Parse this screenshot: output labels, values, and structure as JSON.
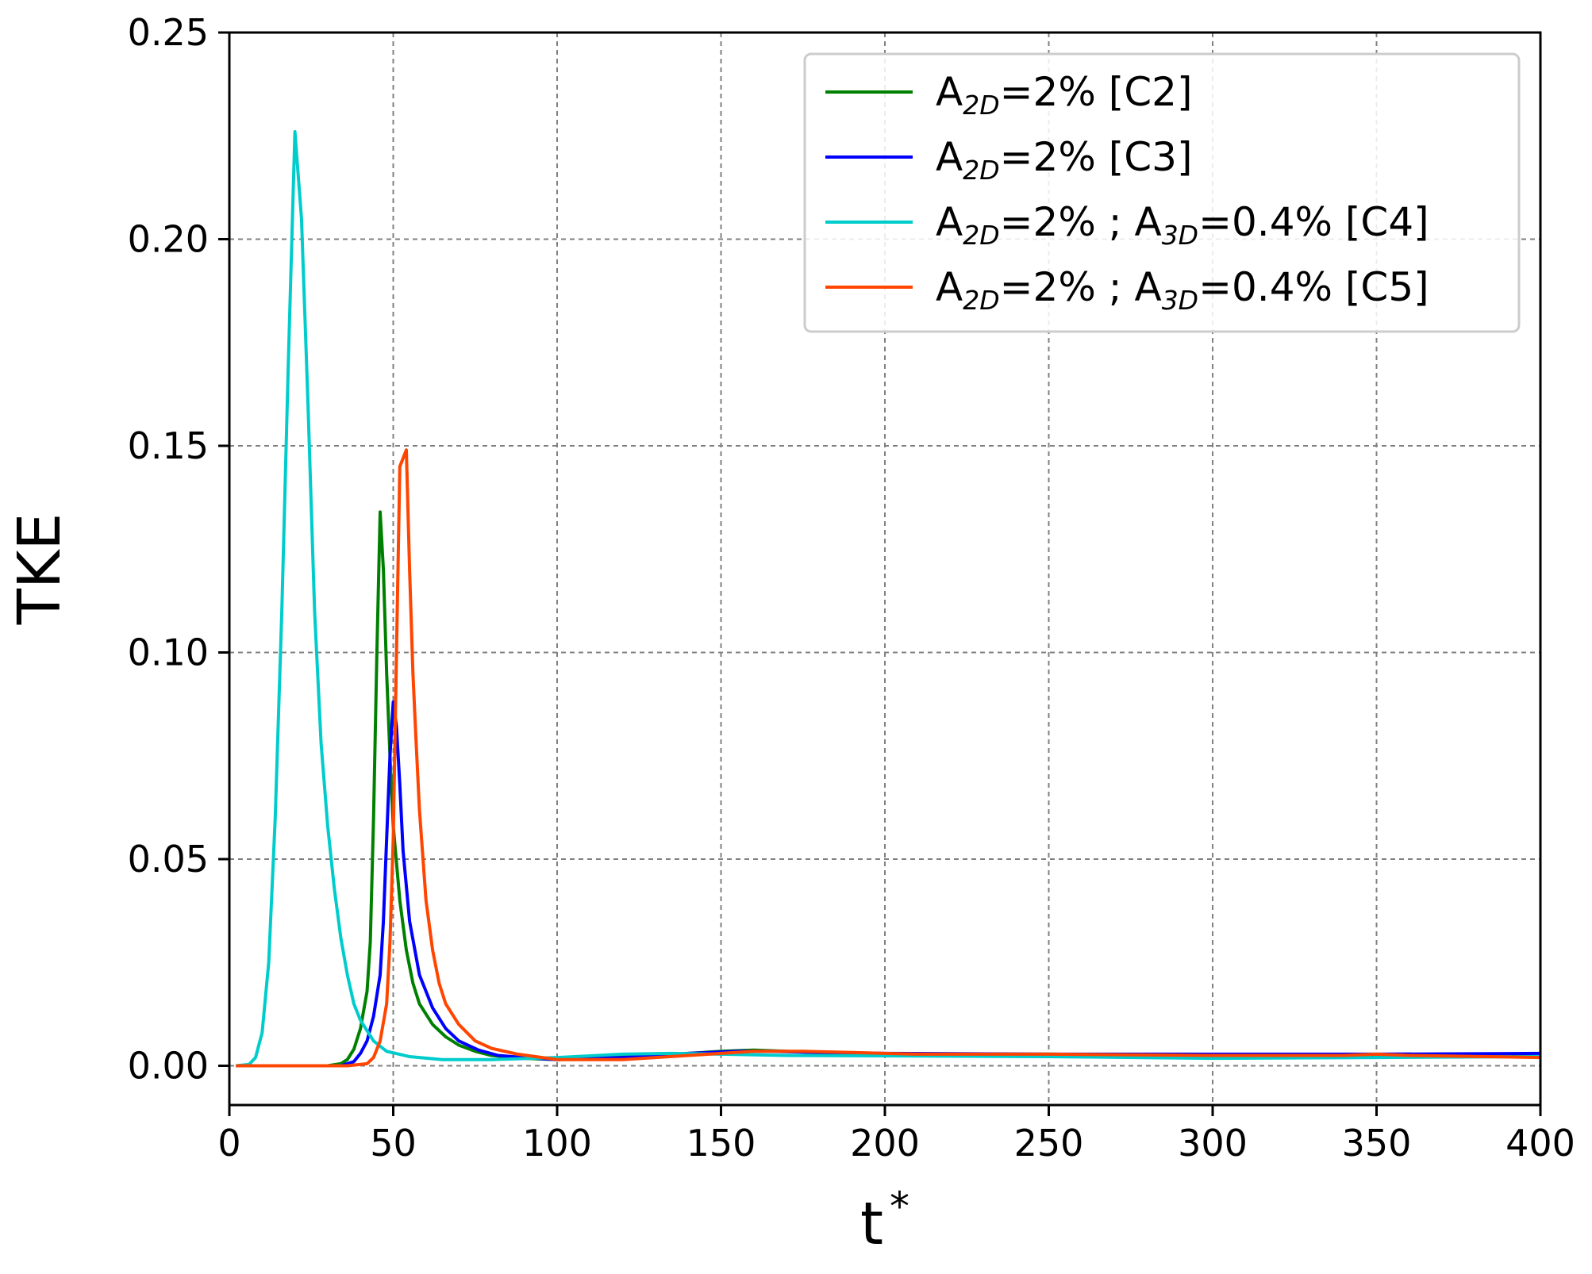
{
  "chart_data": {
    "type": "line",
    "xlabel": "t*",
    "ylabel": "TKE",
    "xlim": [
      0,
      400
    ],
    "ylim": [
      -0.0095,
      0.25
    ],
    "xticks": [
      0,
      50,
      100,
      150,
      200,
      250,
      300,
      350,
      400
    ],
    "yticks": [
      0.0,
      0.05,
      0.1,
      0.15,
      0.2,
      0.25
    ],
    "xtick_labels": [
      "0",
      "50",
      "100",
      "150",
      "200",
      "250",
      "300",
      "350",
      "400"
    ],
    "ytick_labels": [
      "0.00",
      "0.05",
      "0.10",
      "0.15",
      "0.20",
      "0.25"
    ],
    "grid": true,
    "legend_position": "top-right",
    "series": [
      {
        "name": "A2D=2% [C2]",
        "legend": [
          {
            "t": "A"
          },
          {
            "t": "2D",
            "sub": true
          },
          {
            "t": "=2% [C2]"
          }
        ],
        "color": "#008000",
        "points": [
          [
            2,
            0
          ],
          [
            20,
            0
          ],
          [
            30,
            0
          ],
          [
            34,
            0.0005
          ],
          [
            36,
            0.0015
          ],
          [
            38,
            0.004
          ],
          [
            40,
            0.009
          ],
          [
            42,
            0.018
          ],
          [
            43,
            0.03
          ],
          [
            44,
            0.06
          ],
          [
            45,
            0.1
          ],
          [
            46,
            0.134
          ],
          [
            47,
            0.12
          ],
          [
            48,
            0.095
          ],
          [
            49,
            0.075
          ],
          [
            50,
            0.058
          ],
          [
            52,
            0.04
          ],
          [
            54,
            0.028
          ],
          [
            56,
            0.02
          ],
          [
            58,
            0.015
          ],
          [
            62,
            0.01
          ],
          [
            66,
            0.007
          ],
          [
            70,
            0.005
          ],
          [
            75,
            0.0035
          ],
          [
            80,
            0.0025
          ],
          [
            90,
            0.0018
          ],
          [
            100,
            0.0015
          ],
          [
            110,
            0.0018
          ],
          [
            130,
            0.0025
          ],
          [
            150,
            0.0035
          ],
          [
            160,
            0.0038
          ],
          [
            170,
            0.0035
          ],
          [
            185,
            0.003
          ],
          [
            200,
            0.0028
          ],
          [
            250,
            0.0028
          ],
          [
            300,
            0.0025
          ],
          [
            350,
            0.0025
          ],
          [
            400,
            0.0022
          ]
        ]
      },
      {
        "name": "A2D=2% [C3]",
        "legend": [
          {
            "t": "A"
          },
          {
            "t": "2D",
            "sub": true
          },
          {
            "t": "=2% [C3]"
          }
        ],
        "color": "#0000ff",
        "points": [
          [
            2,
            0
          ],
          [
            20,
            0
          ],
          [
            34,
            0
          ],
          [
            38,
            0.001
          ],
          [
            40,
            0.003
          ],
          [
            42,
            0.006
          ],
          [
            44,
            0.012
          ],
          [
            46,
            0.022
          ],
          [
            47,
            0.035
          ],
          [
            48,
            0.055
          ],
          [
            49,
            0.075
          ],
          [
            50,
            0.088
          ],
          [
            51,
            0.082
          ],
          [
            52,
            0.068
          ],
          [
            53,
            0.052
          ],
          [
            55,
            0.035
          ],
          [
            58,
            0.022
          ],
          [
            62,
            0.014
          ],
          [
            66,
            0.009
          ],
          [
            70,
            0.006
          ],
          [
            76,
            0.0038
          ],
          [
            82,
            0.0025
          ],
          [
            90,
            0.002
          ],
          [
            100,
            0.0015
          ],
          [
            120,
            0.002
          ],
          [
            140,
            0.003
          ],
          [
            155,
            0.0035
          ],
          [
            165,
            0.0035
          ],
          [
            180,
            0.0032
          ],
          [
            200,
            0.003
          ],
          [
            250,
            0.0028
          ],
          [
            300,
            0.0028
          ],
          [
            350,
            0.0028
          ],
          [
            400,
            0.003
          ]
        ]
      },
      {
        "name": "A2D=2% ; A3D=0.4% [C4]",
        "legend": [
          {
            "t": "A"
          },
          {
            "t": "2D",
            "sub": true
          },
          {
            "t": "=2% ; A"
          },
          {
            "t": "3D",
            "sub": true
          },
          {
            "t": "=0.4% [C4]"
          }
        ],
        "color": "#00cccc",
        "points": [
          [
            2,
            0
          ],
          [
            6,
            0.0003
          ],
          [
            8,
            0.002
          ],
          [
            10,
            0.008
          ],
          [
            12,
            0.025
          ],
          [
            14,
            0.06
          ],
          [
            16,
            0.11
          ],
          [
            18,
            0.17
          ],
          [
            20,
            0.226
          ],
          [
            22,
            0.205
          ],
          [
            24,
            0.16
          ],
          [
            26,
            0.11
          ],
          [
            28,
            0.078
          ],
          [
            30,
            0.058
          ],
          [
            32,
            0.043
          ],
          [
            34,
            0.031
          ],
          [
            36,
            0.022
          ],
          [
            38,
            0.015
          ],
          [
            40,
            0.011
          ],
          [
            44,
            0.006
          ],
          [
            48,
            0.0035
          ],
          [
            55,
            0.0022
          ],
          [
            65,
            0.0015
          ],
          [
            80,
            0.0015
          ],
          [
            100,
            0.002
          ],
          [
            120,
            0.0028
          ],
          [
            135,
            0.003
          ],
          [
            150,
            0.0028
          ],
          [
            170,
            0.0025
          ],
          [
            200,
            0.0024
          ],
          [
            250,
            0.0022
          ],
          [
            300,
            0.0018
          ],
          [
            350,
            0.002
          ],
          [
            400,
            0.0022
          ]
        ]
      },
      {
        "name": "A2D=2% ; A3D=0.4% [C5]",
        "legend": [
          {
            "t": "A"
          },
          {
            "t": "2D",
            "sub": true
          },
          {
            "t": "=2% ; A"
          },
          {
            "t": "3D",
            "sub": true
          },
          {
            "t": "=0.4% [C5]"
          }
        ],
        "color": "#ff4500",
        "points": [
          [
            2,
            0
          ],
          [
            20,
            0
          ],
          [
            36,
            0
          ],
          [
            42,
            0.0005
          ],
          [
            44,
            0.002
          ],
          [
            46,
            0.006
          ],
          [
            48,
            0.015
          ],
          [
            49,
            0.03
          ],
          [
            50,
            0.055
          ],
          [
            51,
            0.1
          ],
          [
            52,
            0.145
          ],
          [
            54,
            0.149
          ],
          [
            55,
            0.12
          ],
          [
            56,
            0.095
          ],
          [
            57,
            0.078
          ],
          [
            58,
            0.062
          ],
          [
            60,
            0.04
          ],
          [
            62,
            0.028
          ],
          [
            64,
            0.02
          ],
          [
            66,
            0.015
          ],
          [
            70,
            0.01
          ],
          [
            75,
            0.006
          ],
          [
            80,
            0.0042
          ],
          [
            88,
            0.0028
          ],
          [
            100,
            0.0015
          ],
          [
            120,
            0.0015
          ],
          [
            140,
            0.0025
          ],
          [
            160,
            0.0035
          ],
          [
            175,
            0.0035
          ],
          [
            190,
            0.0032
          ],
          [
            210,
            0.0028
          ],
          [
            250,
            0.0028
          ],
          [
            300,
            0.0025
          ],
          [
            340,
            0.0025
          ],
          [
            350,
            0.0028
          ],
          [
            360,
            0.0025
          ],
          [
            400,
            0.002
          ]
        ]
      }
    ]
  }
}
